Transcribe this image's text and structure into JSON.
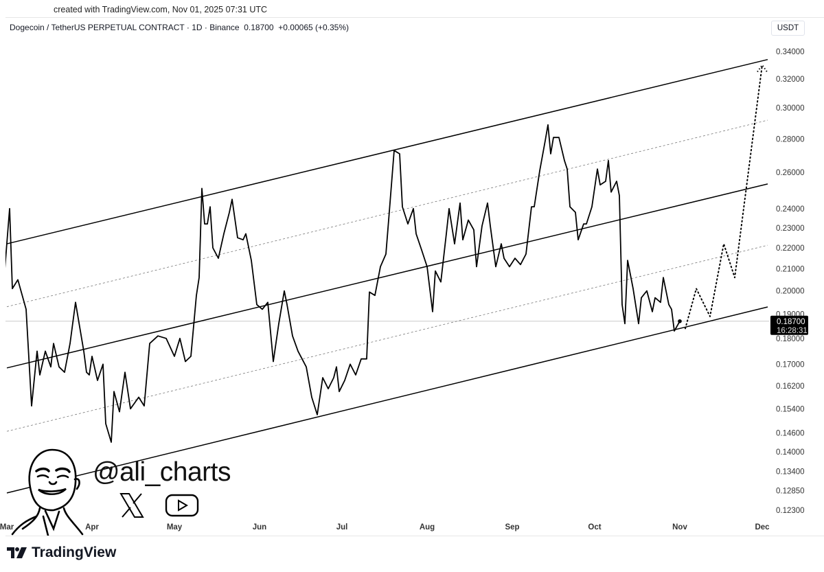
{
  "header": {
    "created": "created with TradingView.com, Nov 01, 2025 07:31 UTC",
    "legend": "Dogecoin / TetherUS PERPETUAL CONTRACT · 1D · Binance  0.18700  +0.00065 (+0.35%)",
    "currency": "USDT"
  },
  "branding": {
    "handle": "@ali_charts",
    "tradingview_logo": "TradingView",
    "icons": [
      "x-logo-icon",
      "youtube-icon",
      "avatar-illustration"
    ]
  },
  "chart_data": {
    "type": "line",
    "title": "Dogecoin / TetherUS PERPETUAL CONTRACT · 1D · Binance",
    "y_scale": "log",
    "ylim": [
      0.1215,
      0.345
    ],
    "xlim": [
      "2025-02-28",
      "2025-12-05"
    ],
    "grid": false,
    "y_ticks": [
      "0.34000",
      "0.32000",
      "0.30000",
      "0.28000",
      "0.26000",
      "0.24000",
      "0.23000",
      "0.22000",
      "0.21000",
      "0.20000",
      "0.19000",
      "0.18000",
      "0.17000",
      "0.16200",
      "0.15400",
      "0.14600",
      "0.14000",
      "0.13400",
      "0.12850",
      "0.12300"
    ],
    "x_ticks": [
      {
        "label": "Mar",
        "date": "2025-03-01"
      },
      {
        "label": "Apr",
        "date": "2025-04-01"
      },
      {
        "label": "May",
        "date": "2025-05-01"
      },
      {
        "label": "Jun",
        "date": "2025-06-01"
      },
      {
        "label": "Jul",
        "date": "2025-07-01"
      },
      {
        "label": "Aug",
        "date": "2025-08-01"
      },
      {
        "label": "Sep",
        "date": "2025-09-01"
      },
      {
        "label": "Oct",
        "date": "2025-10-01"
      },
      {
        "label": "Nov",
        "date": "2025-11-01"
      },
      {
        "label": "Dec",
        "date": "2025-12-01"
      }
    ],
    "last_price": {
      "value": "0.18700",
      "countdown": "16:28:31",
      "price": 0.187
    },
    "series": [
      {
        "style": "solid",
        "color": "#000000",
        "points": [
          [
            "2025-02-28",
            0.206
          ],
          [
            "2025-03-02",
            0.24
          ],
          [
            "2025-03-03",
            0.201
          ],
          [
            "2025-03-05",
            0.205
          ],
          [
            "2025-03-08",
            0.192
          ],
          [
            "2025-03-10",
            0.155
          ],
          [
            "2025-03-12",
            0.175
          ],
          [
            "2025-03-13",
            0.166
          ],
          [
            "2025-03-15",
            0.175
          ],
          [
            "2025-03-17",
            0.169
          ],
          [
            "2025-03-18",
            0.178
          ],
          [
            "2025-03-20",
            0.169
          ],
          [
            "2025-03-22",
            0.167
          ],
          [
            "2025-03-24",
            0.178
          ],
          [
            "2025-03-26",
            0.195
          ],
          [
            "2025-03-29",
            0.175
          ],
          [
            "2025-03-30",
            0.167
          ],
          [
            "2025-03-31",
            0.166
          ],
          [
            "2025-04-01",
            0.173
          ],
          [
            "2025-04-03",
            0.164
          ],
          [
            "2025-04-05",
            0.17
          ],
          [
            "2025-04-06",
            0.149
          ],
          [
            "2025-04-08",
            0.143
          ],
          [
            "2025-04-09",
            0.16
          ],
          [
            "2025-04-11",
            0.153
          ],
          [
            "2025-04-13",
            0.167
          ],
          [
            "2025-04-15",
            0.154
          ],
          [
            "2025-04-18",
            0.158
          ],
          [
            "2025-04-20",
            0.155
          ],
          [
            "2025-04-22",
            0.178
          ],
          [
            "2025-04-25",
            0.181
          ],
          [
            "2025-04-28",
            0.18
          ],
          [
            "2025-05-01",
            0.173
          ],
          [
            "2025-05-03",
            0.18
          ],
          [
            "2025-05-05",
            0.171
          ],
          [
            "2025-05-07",
            0.173
          ],
          [
            "2025-05-09",
            0.198
          ],
          [
            "2025-05-10",
            0.206
          ],
          [
            "2025-05-11",
            0.251
          ],
          [
            "2025-05-12",
            0.232
          ],
          [
            "2025-05-13",
            0.232
          ],
          [
            "2025-05-14",
            0.241
          ],
          [
            "2025-05-15",
            0.22
          ],
          [
            "2025-05-17",
            0.215
          ],
          [
            "2025-05-19",
            0.227
          ],
          [
            "2025-05-21",
            0.238
          ],
          [
            "2025-05-22",
            0.245
          ],
          [
            "2025-05-24",
            0.225
          ],
          [
            "2025-05-26",
            0.224
          ],
          [
            "2025-05-27",
            0.227
          ],
          [
            "2025-05-29",
            0.214
          ],
          [
            "2025-05-31",
            0.194
          ],
          [
            "2025-06-02",
            0.192
          ],
          [
            "2025-06-04",
            0.195
          ],
          [
            "2025-06-06",
            0.171
          ],
          [
            "2025-06-08",
            0.186
          ],
          [
            "2025-06-10",
            0.2
          ],
          [
            "2025-06-11",
            0.194
          ],
          [
            "2025-06-13",
            0.181
          ],
          [
            "2025-06-15",
            0.175
          ],
          [
            "2025-06-18",
            0.169
          ],
          [
            "2025-06-20",
            0.158
          ],
          [
            "2025-06-22",
            0.152
          ],
          [
            "2025-06-24",
            0.165
          ],
          [
            "2025-06-26",
            0.161
          ],
          [
            "2025-06-28",
            0.165
          ],
          [
            "2025-06-29",
            0.169
          ],
          [
            "2025-06-30",
            0.16
          ],
          [
            "2025-07-02",
            0.164
          ],
          [
            "2025-07-04",
            0.17
          ],
          [
            "2025-07-06",
            0.166
          ],
          [
            "2025-07-08",
            0.172
          ],
          [
            "2025-07-10",
            0.172
          ],
          [
            "2025-07-11",
            0.1995
          ],
          [
            "2025-07-13",
            0.198
          ],
          [
            "2025-07-15",
            0.211
          ],
          [
            "2025-07-17",
            0.217
          ],
          [
            "2025-07-18",
            0.234
          ],
          [
            "2025-07-20",
            0.273
          ],
          [
            "2025-07-22",
            0.271
          ],
          [
            "2025-07-23",
            0.241
          ],
          [
            "2025-07-25",
            0.232
          ],
          [
            "2025-07-27",
            0.24
          ],
          [
            "2025-07-28",
            0.227
          ],
          [
            "2025-07-30",
            0.219
          ],
          [
            "2025-08-01",
            0.211
          ],
          [
            "2025-08-03",
            0.191
          ],
          [
            "2025-08-04",
            0.209
          ],
          [
            "2025-08-06",
            0.204
          ],
          [
            "2025-08-08",
            0.227
          ],
          [
            "2025-08-09",
            0.24
          ],
          [
            "2025-08-11",
            0.222
          ],
          [
            "2025-08-13",
            0.243
          ],
          [
            "2025-08-14",
            0.224
          ],
          [
            "2025-08-16",
            0.234
          ],
          [
            "2025-08-18",
            0.229
          ],
          [
            "2025-08-19",
            0.211
          ],
          [
            "2025-08-21",
            0.231
          ],
          [
            "2025-08-23",
            0.243
          ],
          [
            "2025-08-24",
            0.231
          ],
          [
            "2025-08-26",
            0.211
          ],
          [
            "2025-08-28",
            0.222
          ],
          [
            "2025-08-29",
            0.215
          ],
          [
            "2025-08-31",
            0.211
          ],
          [
            "2025-09-02",
            0.215
          ],
          [
            "2025-09-04",
            0.212
          ],
          [
            "2025-09-06",
            0.217
          ],
          [
            "2025-09-08",
            0.241
          ],
          [
            "2025-09-09",
            0.241
          ],
          [
            "2025-09-11",
            0.261
          ],
          [
            "2025-09-13",
            0.279
          ],
          [
            "2025-09-14",
            0.289
          ],
          [
            "2025-09-15",
            0.271
          ],
          [
            "2025-09-16",
            0.281
          ],
          [
            "2025-09-18",
            0.281
          ],
          [
            "2025-09-20",
            0.267
          ],
          [
            "2025-09-21",
            0.262
          ],
          [
            "2025-09-22",
            0.241
          ],
          [
            "2025-09-24",
            0.238
          ],
          [
            "2025-09-25",
            0.224
          ],
          [
            "2025-09-27",
            0.232
          ],
          [
            "2025-09-28",
            0.232
          ],
          [
            "2025-09-30",
            0.241
          ],
          [
            "2025-10-02",
            0.262
          ],
          [
            "2025-10-03",
            0.253
          ],
          [
            "2025-10-05",
            0.255
          ],
          [
            "2025-10-06",
            0.267
          ],
          [
            "2025-10-07",
            0.249
          ],
          [
            "2025-10-09",
            0.255
          ],
          [
            "2025-10-10",
            0.247
          ],
          [
            "2025-10-11",
            0.194
          ],
          [
            "2025-10-12",
            0.186
          ],
          [
            "2025-10-13",
            0.214
          ],
          [
            "2025-10-15",
            0.201
          ],
          [
            "2025-10-17",
            0.186
          ],
          [
            "2025-10-18",
            0.197
          ],
          [
            "2025-10-20",
            0.2
          ],
          [
            "2025-10-22",
            0.191
          ],
          [
            "2025-10-23",
            0.197
          ],
          [
            "2025-10-25",
            0.195
          ],
          [
            "2025-10-26",
            0.206
          ],
          [
            "2025-10-28",
            0.194
          ],
          [
            "2025-10-29",
            0.192
          ],
          [
            "2025-10-30",
            0.183
          ],
          [
            "2025-11-01",
            0.187
          ]
        ]
      },
      {
        "style": "dotted",
        "color": "#000000",
        "arrow": true,
        "points": [
          [
            "2025-11-03",
            0.184
          ],
          [
            "2025-11-07",
            0.201
          ],
          [
            "2025-11-12",
            0.189
          ],
          [
            "2025-11-17",
            0.222
          ],
          [
            "2025-11-21",
            0.206
          ],
          [
            "2025-12-01",
            0.33
          ]
        ]
      }
    ],
    "channel_lines": [
      {
        "style": "solid",
        "points": [
          [
            "2025-03-01",
            0.222
          ],
          [
            "2025-12-03",
            0.334
          ]
        ]
      },
      {
        "style": "dashed",
        "points": [
          [
            "2025-03-01",
            0.1931
          ],
          [
            "2025-12-03",
            0.292
          ]
        ]
      },
      {
        "style": "solid",
        "points": [
          [
            "2025-03-01",
            0.1686
          ],
          [
            "2025-12-03",
            0.2535
          ]
        ]
      },
      {
        "style": "dashed",
        "points": [
          [
            "2025-03-01",
            0.1465
          ],
          [
            "2025-12-03",
            0.2213
          ]
        ]
      },
      {
        "style": "solid",
        "points": [
          [
            "2025-03-01",
            0.1278
          ],
          [
            "2025-12-03",
            0.193
          ]
        ]
      }
    ]
  }
}
